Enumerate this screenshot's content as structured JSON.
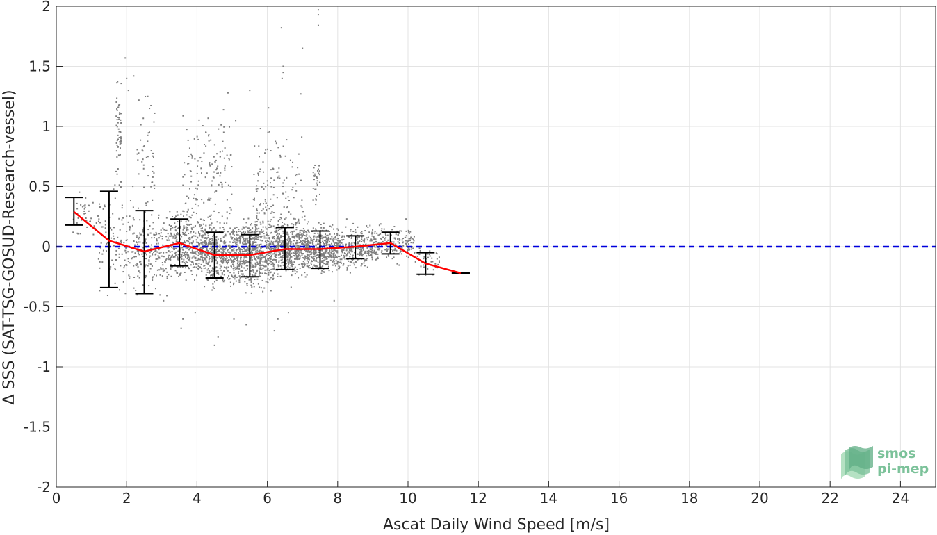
{
  "colors": {
    "scatter": "#7f7f7f",
    "mean_line": "#ff0000",
    "zero_line": "#0000dd",
    "error_bars": "#000000",
    "grid": "#e3e3e3",
    "logo": "#7cc29a"
  },
  "logo": {
    "line1": "smos",
    "line2": "pi-mep"
  },
  "chart_data": {
    "type": "scatter",
    "xlabel": "Ascat Daily Wind Speed [m/s]",
    "ylabel": "Δ SSS (SAT-TSG-GOSUD-Research-vessel)",
    "xlim": [
      0,
      25
    ],
    "ylim": [
      -2,
      2
    ],
    "xticks": [
      "0",
      "2",
      "4",
      "6",
      "8",
      "10",
      "12",
      "14",
      "16",
      "18",
      "20",
      "22",
      "24"
    ],
    "yticks": [
      "2",
      "1.5",
      "1",
      "0.5",
      "0",
      "-0.5",
      "-1",
      "-1.5",
      "-2"
    ],
    "grid": true,
    "reference_line": {
      "y": 0,
      "style": "dashed",
      "color": "blue"
    },
    "binned_mean": {
      "x": [
        0.5,
        1.5,
        2.5,
        3.5,
        4.5,
        5.5,
        6.5,
        7.5,
        8.5,
        9.5,
        10.5,
        11.5
      ],
      "mean": [
        0.29,
        0.05,
        -0.04,
        0.03,
        -0.07,
        -0.07,
        -0.02,
        -0.02,
        0.0,
        0.03,
        -0.14,
        -0.22
      ],
      "lower": [
        0.18,
        -0.34,
        -0.39,
        -0.16,
        -0.26,
        -0.25,
        -0.19,
        -0.18,
        -0.1,
        -0.06,
        -0.23,
        -0.22
      ],
      "upper": [
        0.41,
        0.46,
        0.3,
        0.23,
        0.12,
        0.1,
        0.16,
        0.13,
        0.09,
        0.12,
        -0.05,
        -0.22
      ]
    },
    "scatter_clusters": [
      {
        "x_range": [
          0.4,
          1.2
        ],
        "center": 0.25,
        "spread": 0.09,
        "n": 40
      },
      {
        "x_range": [
          1.2,
          2.2
        ],
        "center": 0.05,
        "spread": 0.2,
        "n": 120
      },
      {
        "x_range": [
          1.7,
          1.85
        ],
        "center": 0.95,
        "spread": 0.2,
        "n": 60
      },
      {
        "x_range": [
          2.2,
          3.2
        ],
        "center": -0.03,
        "spread": 0.15,
        "n": 200
      },
      {
        "x_range": [
          2.3,
          2.8
        ],
        "center": 0.7,
        "spread": 0.25,
        "n": 50
      },
      {
        "x_range": [
          3.2,
          4.2
        ],
        "center": 0.0,
        "spread": 0.12,
        "n": 380
      },
      {
        "x_range": [
          3.6,
          4.2
        ],
        "center": 0.55,
        "spread": 0.3,
        "n": 70
      },
      {
        "x_range": [
          4.2,
          5.2
        ],
        "center": -0.05,
        "spread": 0.12,
        "n": 520
      },
      {
        "x_range": [
          4.2,
          5.0
        ],
        "center": 0.55,
        "spread": 0.3,
        "n": 90
      },
      {
        "x_range": [
          5.2,
          6.2
        ],
        "center": -0.05,
        "spread": 0.13,
        "n": 620
      },
      {
        "x_range": [
          5.6,
          6.2
        ],
        "center": 0.45,
        "spread": 0.25,
        "n": 80
      },
      {
        "x_range": [
          6.2,
          7.2
        ],
        "center": 0.0,
        "spread": 0.11,
        "n": 560
      },
      {
        "x_range": [
          6.2,
          7.0
        ],
        "center": 0.45,
        "spread": 0.3,
        "n": 60
      },
      {
        "x_range": [
          7.2,
          8.2
        ],
        "center": -0.02,
        "spread": 0.09,
        "n": 400
      },
      {
        "x_range": [
          7.3,
          7.5
        ],
        "center": 0.55,
        "spread": 0.12,
        "n": 30
      },
      {
        "x_range": [
          8.2,
          9.2
        ],
        "center": 0.0,
        "spread": 0.08,
        "n": 260
      },
      {
        "x_range": [
          9.2,
          10.2
        ],
        "center": 0.02,
        "spread": 0.07,
        "n": 140
      },
      {
        "x_range": [
          10.2,
          10.9
        ],
        "center": -0.12,
        "spread": 0.06,
        "n": 40
      }
    ],
    "outliers": [
      [
        1.96,
        1.57
      ],
      [
        2.0,
        1.4
      ],
      [
        2.05,
        1.3
      ],
      [
        2.2,
        1.42
      ],
      [
        2.6,
        1.25
      ],
      [
        2.65,
        1.15
      ],
      [
        6.4,
        1.82
      ],
      [
        6.45,
        1.5
      ],
      [
        6.45,
        1.45
      ],
      [
        6.42,
        1.4
      ],
      [
        7.45,
        1.97
      ],
      [
        7.45,
        1.93
      ],
      [
        7.45,
        1.84
      ],
      [
        7.0,
        1.65
      ],
      [
        6.95,
        1.27
      ],
      [
        5.5,
        1.3
      ],
      [
        5.1,
        1.05
      ],
      [
        3.95,
        -0.55
      ],
      [
        3.6,
        -0.6
      ],
      [
        3.55,
        -0.68
      ],
      [
        4.5,
        -0.82
      ],
      [
        4.6,
        -0.75
      ],
      [
        6.2,
        -0.7
      ],
      [
        6.3,
        -0.6
      ],
      [
        5.05,
        -0.6
      ],
      [
        5.4,
        -0.65
      ],
      [
        6.6,
        -0.55
      ],
      [
        7.9,
        -0.45
      ],
      [
        3.05,
        -0.45
      ],
      [
        2.3,
        -0.4
      ]
    ]
  }
}
